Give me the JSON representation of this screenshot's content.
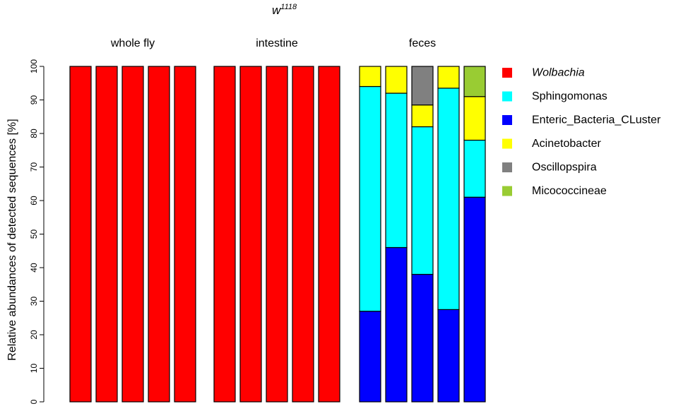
{
  "chart_data": {
    "type": "bar",
    "stacked": true,
    "title_base": "w",
    "title_sup": "1118",
    "ylabel": "Relative abundances of detected sequences [%]",
    "ylim": [
      0,
      100
    ],
    "yticks": [
      0,
      10,
      20,
      30,
      40,
      50,
      60,
      70,
      80,
      90,
      100
    ],
    "groups": [
      {
        "name": "whole fly",
        "n_samples": 5
      },
      {
        "name": "intestine",
        "n_samples": 5
      },
      {
        "name": "feces",
        "n_samples": 5
      }
    ],
    "series": [
      {
        "name": "Wolbachia",
        "italic": true,
        "color": "#ff0000",
        "values": [
          100,
          100,
          100,
          100,
          100,
          100,
          100,
          100,
          100,
          100,
          0,
          0,
          0,
          0,
          0
        ]
      },
      {
        "name": "Sphingomonas",
        "italic": false,
        "color": "#00ffff",
        "values": [
          0,
          0,
          0,
          0,
          0,
          0,
          0,
          0,
          0,
          0,
          67,
          46,
          44,
          66,
          17
        ]
      },
      {
        "name": "Enteric_Bacteria_CLuster",
        "italic": false,
        "color": "#0000ff",
        "values": [
          0,
          0,
          0,
          0,
          0,
          0,
          0,
          0,
          0,
          0,
          27,
          46,
          38,
          27.5,
          61
        ]
      },
      {
        "name": "Acinetobacter",
        "italic": false,
        "color": "#ffff00",
        "values": [
          0,
          0,
          0,
          0,
          0,
          0,
          0,
          0,
          0,
          0,
          6,
          8,
          6.5,
          6.5,
          13
        ]
      },
      {
        "name": "Oscillopspira",
        "italic": false,
        "color": "#808080",
        "values": [
          0,
          0,
          0,
          0,
          0,
          0,
          0,
          0,
          0,
          0,
          0,
          0,
          11.5,
          0,
          0
        ]
      },
      {
        "name": "Micococcineae",
        "italic": false,
        "color": "#99cc33",
        "values": [
          0,
          0,
          0,
          0,
          0,
          0,
          0,
          0,
          0,
          0,
          0,
          0,
          0,
          0,
          9
        ]
      }
    ],
    "stack_order_bottom_to_top": [
      "Enteric_Bacteria_CLuster",
      "Sphingomonas",
      "Acinetobacter",
      "Oscillopspira",
      "Micococcineae",
      "Wolbachia"
    ],
    "legend_position": "right"
  }
}
